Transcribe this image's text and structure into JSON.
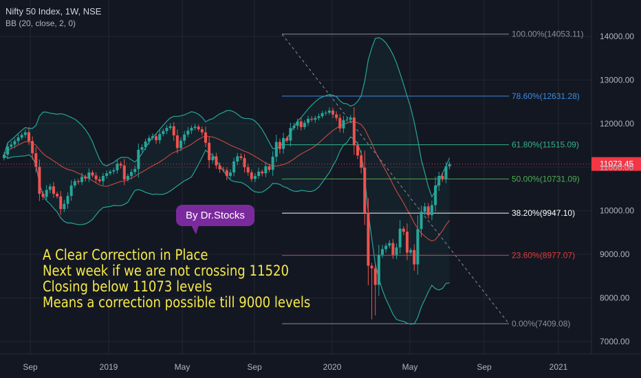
{
  "header": {
    "symbol": "Nifty 50 Index, 1W, NSE",
    "indicator": "BB (20, close, 2, 0)"
  },
  "callout": {
    "text": "By  Dr.Stocks"
  },
  "note": {
    "lines": [
      "A Clear Correction in Place",
      "Next week if we are not crossing 11520",
      "Closing below 11073 levels",
      "Means a correction possible till 9000 levels"
    ]
  },
  "price_label": {
    "value": "11073.45",
    "color": "#f23645"
  },
  "colors": {
    "up": "#26a69a",
    "down": "#ef5350",
    "band": "#26a69a",
    "basis": "#c2453d",
    "grid": "#232733",
    "axis_text": "#b2b5be"
  },
  "chart_data": {
    "type": "candlestick",
    "title": "Nifty 50 Index, 1W, NSE",
    "indicator": "BB (20, close, 2, 0)",
    "y_ticks": [
      "7000.00",
      "8000.00",
      "9000.00",
      "10000.00",
      "11000.00",
      "12000.00",
      "13000.00",
      "14000.00"
    ],
    "x_ticks": [
      "Sep",
      "2019",
      "May",
      "Sep",
      "2020",
      "May",
      "Sep",
      "2021"
    ],
    "ylim": [
      6750,
      14700
    ],
    "grid": true,
    "fib_levels": [
      {
        "label": "100.00%(14053.11)",
        "value": 14053.11,
        "color": "#8a8e99"
      },
      {
        "label": "78.60%(12631.28)",
        "value": 12631.28,
        "color": "#3d8de0"
      },
      {
        "label": "61.80%(11515.09)",
        "value": 11515.09,
        "color": "#35b38a"
      },
      {
        "label": "50.00%(10731.09)",
        "value": 10731.09,
        "color": "#4caf50"
      },
      {
        "label": "38.20%(9947.10)",
        "value": 9947.1,
        "color": "#ffffff"
      },
      {
        "label": "23.60%(8977.07)",
        "value": 8977.07,
        "color": "#e53935"
      },
      {
        "label": "0.00%(7409.08)",
        "value": 7409.08,
        "color": "#8a8e99"
      }
    ],
    "last_price": 11073.45,
    "trend_line": {
      "from": 14053,
      "to": 7409
    },
    "close": [
      11290,
      11470,
      11520,
      11600,
      11680,
      11740,
      11800,
      11600,
      11320,
      11010,
      10390,
      10320,
      10480,
      10560,
      10390,
      10330,
      10040,
      10160,
      10340,
      10580,
      10680,
      10660,
      10780,
      10740,
      10880,
      10810,
      10720,
      10680,
      10800,
      10860,
      10900,
      10930,
      11080,
      11040,
      10720,
      10800,
      10890,
      10960,
      11400,
      11460,
      11590,
      11670,
      11710,
      11620,
      11760,
      11830,
      11900,
      11940,
      11730,
      11440,
      11610,
      11750,
      11840,
      11900,
      11930,
      11870,
      11800,
      11560,
      11160,
      11250,
      11040,
      10950,
      10930,
      10800,
      10880,
      11130,
      11250,
      11210,
      11000,
      10880,
      10730,
      10800,
      10900,
      10860,
      11020,
      10940,
      11240,
      11580,
      11420,
      11670,
      11610,
      11900,
      11950,
      12050,
      11920,
      12020,
      12110,
      12090,
      12130,
      12170,
      12240,
      12250,
      12300,
      12210,
      12130,
      11890,
      12080,
      12090,
      12140,
      11500,
      11270,
      10990,
      9960,
      8740,
      8680,
      8300,
      8990,
      9120,
      9200,
      9260,
      8990,
      9160,
      9590,
      9520,
      9040,
      9100,
      8770,
      9580,
      9980,
      10100,
      9900,
      10130,
      10580,
      10800,
      10730,
      11020,
      11070
    ]
  }
}
